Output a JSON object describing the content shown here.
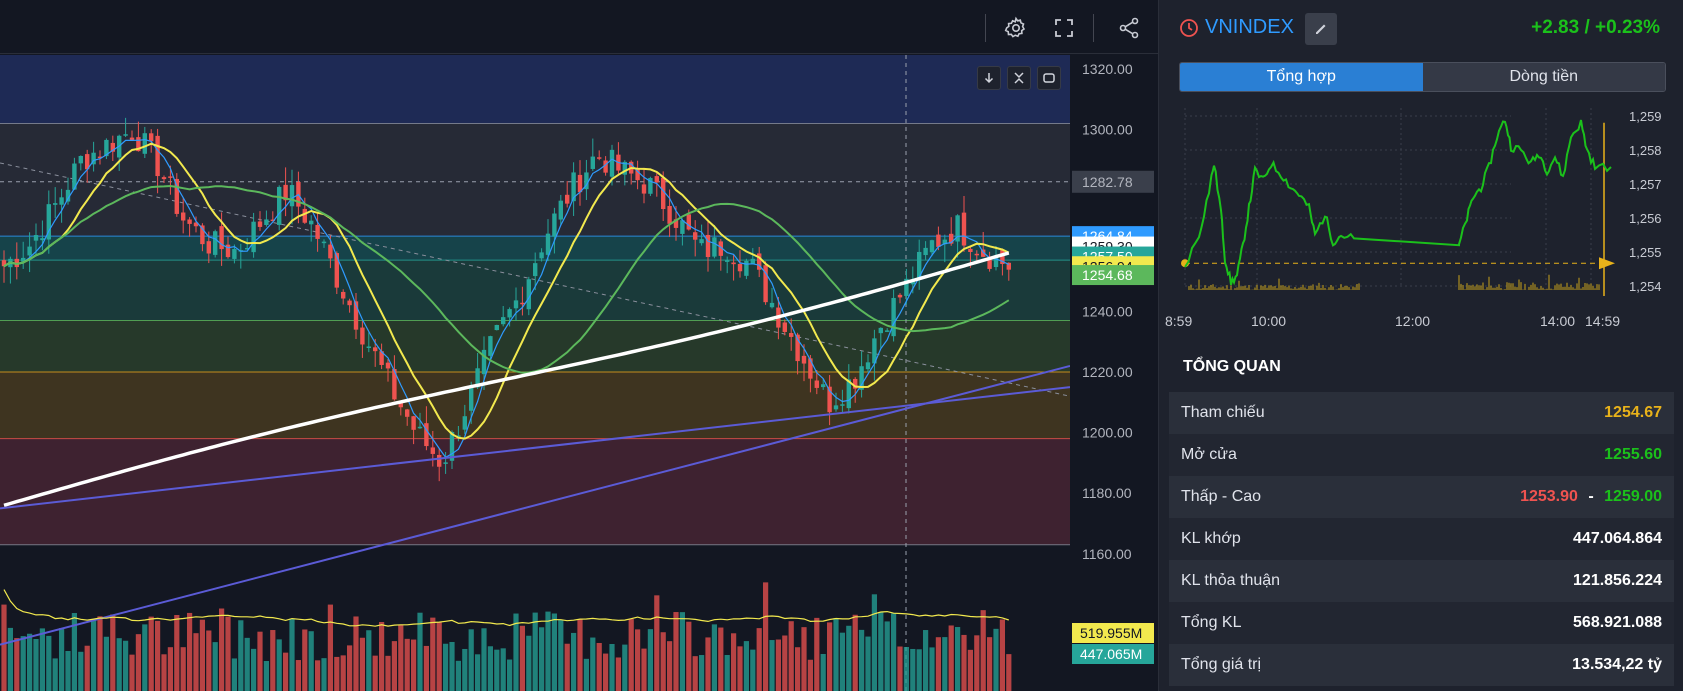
{
  "toolbar": {
    "icons": [
      "settings-icon",
      "fullscreen-icon",
      "share-icon"
    ]
  },
  "chart": {
    "y_axis_labels": [
      "1320.00",
      "1300.00",
      "1282.78",
      "1240.00",
      "1220.00",
      "1200.00",
      "1180.00",
      "1160.00"
    ],
    "price_tags": {
      "prior_high": "1282.78",
      "p1": "1264.84",
      "p2": "1259.30",
      "p3": "1257.50",
      "p4": "1256.94",
      "p5": "1254.68"
    },
    "volume_tags": {
      "vol_ma": "519.955M",
      "vol": "447.065M"
    },
    "colors": {
      "up": "#26a69a",
      "down": "#ef5350",
      "ma_white": "#ffffff",
      "ma_yellow": "#f2e94e",
      "ma_green": "#5cb85c",
      "ma_blue": "#2f9bff",
      "trend_purple": "#5b5bd6"
    }
  },
  "info": {
    "ticker": "VNINDEX",
    "change": "+2.83 / +0.23%",
    "tabs": [
      "Tổng hợp",
      "Dòng tiền"
    ],
    "active_tab": 0,
    "intraday": {
      "y_labels": [
        "1,259",
        "1,258",
        "1,257",
        "1,256",
        "1,255",
        "1,254"
      ],
      "x_labels": [
        "8:59",
        "10:00",
        "12:00",
        "14:00",
        "14:59"
      ]
    },
    "overview_title": "TỔNG QUAN",
    "rows": [
      {
        "label": "Tham chiếu",
        "value": "1254.67",
        "color": "#e8b21a"
      },
      {
        "label": "Mở cửa",
        "value": "1255.60",
        "color": "#1bc11b"
      },
      {
        "label": "Thấp - Cao",
        "value_low": "1253.90",
        "sep": "-",
        "value_high": "1259.00",
        "low_color": "#ef5350",
        "high_color": "#1bc11b"
      },
      {
        "label": "KL khớp",
        "value": "447.064.864",
        "color": "#ffffff"
      },
      {
        "label": "KL thỏa thuận",
        "value": "121.856.224",
        "color": "#ffffff"
      },
      {
        "label": "Tổng KL",
        "value": "568.921.088",
        "color": "#ffffff"
      },
      {
        "label": "Tổng giá trị",
        "value": "13.534,22 tỷ",
        "color": "#ffffff"
      }
    ]
  }
}
